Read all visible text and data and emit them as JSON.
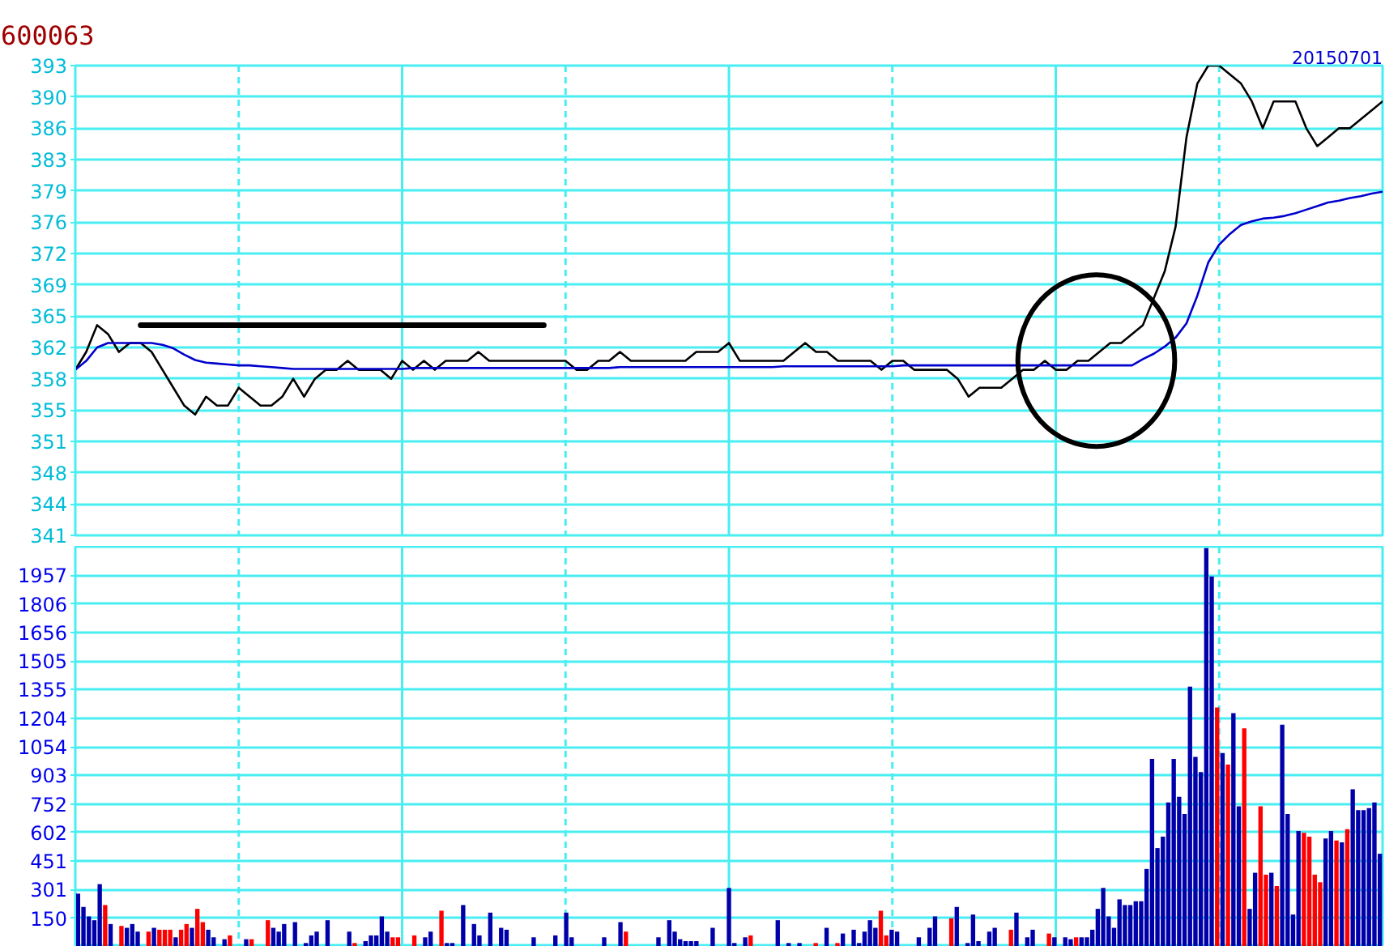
{
  "chart_data": [
    {
      "type": "line",
      "title": "600063",
      "annotations": [
        "20150701"
      ],
      "categories": [
        null,
        null,
        null,
        null,
        null,
        null,
        null,
        null,
        null,
        null,
        null,
        null,
        null,
        null,
        null,
        null,
        null,
        null,
        null,
        null,
        null,
        null,
        null,
        null,
        null,
        null,
        null,
        null,
        null,
        null,
        null,
        null,
        null,
        null,
        null,
        null,
        null,
        null,
        null,
        null,
        null,
        null,
        null,
        null,
        null,
        null,
        null,
        null,
        null,
        null,
        null,
        null,
        null,
        null,
        null,
        null,
        null,
        null,
        null,
        null,
        null,
        null,
        null,
        null,
        null,
        null,
        null,
        null,
        null,
        null,
        null,
        null,
        null,
        null,
        null,
        null,
        null,
        null,
        null,
        null,
        null,
        null,
        null,
        null,
        null,
        null,
        null,
        null,
        null,
        null,
        null,
        null,
        null,
        null,
        null,
        null,
        null,
        null,
        null,
        null,
        null,
        null,
        null,
        null,
        null,
        null,
        null,
        null,
        null,
        null,
        null,
        null,
        null,
        null,
        null,
        null,
        null,
        null,
        null,
        null,
        null
      ],
      "series": [
        {
          "color": "#000000",
          "values": [
            359,
            361,
            364,
            363,
            361,
            362,
            362,
            361,
            359,
            357,
            355,
            354,
            356,
            355,
            355,
            357,
            356,
            355,
            355,
            356,
            358,
            356,
            358,
            359,
            359,
            360,
            359,
            359,
            359,
            358,
            360,
            359,
            360,
            359,
            360,
            360,
            360,
            361,
            360,
            360,
            360,
            360,
            360,
            360,
            360,
            360,
            359,
            359,
            360,
            360,
            361,
            360,
            360,
            360,
            360,
            360,
            360,
            361,
            361,
            361,
            362,
            360,
            360,
            360,
            360,
            360,
            361,
            362,
            361,
            361,
            360,
            360,
            360,
            360,
            359,
            360,
            360,
            359,
            359,
            359,
            359,
            358,
            356,
            357,
            357,
            357,
            358,
            359,
            359,
            360,
            359,
            359,
            360,
            360,
            361,
            362,
            362,
            363,
            364,
            367,
            370,
            375,
            385,
            391,
            393,
            393,
            392,
            391,
            389,
            386,
            389,
            389,
            389,
            386,
            384,
            385,
            386,
            386,
            387,
            388,
            389
          ]
        },
        {
          "color": "#0000cc",
          "values": [
            359,
            360,
            361.5,
            362,
            362,
            362,
            362,
            362,
            361.8,
            361.4,
            360.7,
            360.1,
            359.8,
            359.7,
            359.6,
            359.5,
            359.5,
            359.4,
            359.3,
            359.2,
            359.1,
            359.1,
            359.1,
            359.1,
            359.1,
            359.1,
            359.1,
            359.1,
            359.1,
            359.1,
            359.1,
            359.2,
            359.2,
            359.2,
            359.2,
            359.2,
            359.2,
            359.2,
            359.2,
            359.2,
            359.2,
            359.2,
            359.2,
            359.2,
            359.2,
            359.2,
            359.2,
            359.2,
            359.2,
            359.2,
            359.3,
            359.3,
            359.3,
            359.3,
            359.3,
            359.3,
            359.3,
            359.3,
            359.3,
            359.3,
            359.3,
            359.3,
            359.3,
            359.3,
            359.3,
            359.4,
            359.4,
            359.4,
            359.4,
            359.4,
            359.4,
            359.4,
            359.4,
            359.4,
            359.4,
            359.4,
            359.5,
            359.5,
            359.5,
            359.5,
            359.5,
            359.5,
            359.5,
            359.5,
            359.5,
            359.5,
            359.5,
            359.5,
            359.5,
            359.5,
            359.5,
            359.5,
            359.5,
            359.5,
            359.5,
            359.5,
            359.5,
            359.5,
            360.2,
            360.8,
            361.6,
            362.6,
            364.2,
            367.3,
            371,
            373,
            374.2,
            375.2,
            375.6,
            375.9,
            376,
            376.2,
            376.5,
            376.9,
            377.3,
            377.7,
            377.9,
            378.2,
            378.4,
            378.7,
            378.9
          ]
        },
        {
          "color": "#000000",
          "values": [
            null,
            null,
            null,
            null,
            null,
            null,
            364,
            364,
            364,
            364,
            364,
            364,
            364,
            364,
            364,
            364,
            364,
            364,
            364,
            364,
            364,
            364,
            364,
            364,
            364,
            364,
            364,
            364,
            364,
            364,
            364,
            364,
            364,
            364,
            364,
            364,
            364,
            364,
            364,
            364,
            364,
            364,
            364,
            364,
            null,
            null,
            null,
            null,
            null,
            null,
            null,
            null,
            null,
            null,
            null,
            null,
            null,
            null,
            null,
            null,
            null,
            null,
            null,
            null,
            null,
            null,
            null,
            null,
            null,
            null,
            null,
            null,
            null,
            null,
            null,
            null,
            null,
            null,
            null,
            null,
            null,
            null,
            null,
            null,
            null,
            null,
            null,
            null,
            null,
            null,
            null,
            null,
            null,
            null,
            null,
            null,
            null,
            null,
            null,
            null,
            null,
            null,
            null,
            null,
            null,
            null,
            null,
            null,
            null,
            null,
            null,
            null,
            null,
            null,
            null,
            null,
            null,
            null,
            null,
            null,
            null
          ]
        }
      ],
      "ylim": [
        340.5,
        393
      ],
      "yticks": [
        {
          "value": 340.5,
          "label": "341"
        },
        344,
        {
          "value": 347.5,
          "label": "348"
        },
        351,
        {
          "value": 354.5,
          "label": "355"
        },
        358,
        {
          "value": 361.5,
          "label": "362"
        },
        365,
        {
          "value": 368.5,
          "label": "369"
        },
        372,
        {
          "value": 375.5,
          "label": "376"
        },
        379,
        {
          "value": 382.5,
          "label": "383"
        },
        386,
        {
          "value": 389.5,
          "label": "390"
        },
        393
      ],
      "grid": true,
      "tick_labels": "y"
    },
    {
      "type": "bar",
      "categories": [
        null,
        null,
        null,
        null,
        null,
        null,
        null,
        null,
        null,
        null,
        null,
        null,
        null,
        null,
        null,
        null,
        null,
        null,
        null,
        null,
        null,
        null,
        null,
        null,
        null,
        null,
        null,
        null,
        null,
        null,
        null,
        null,
        null,
        null,
        null,
        null,
        null,
        null,
        null,
        null,
        null,
        null,
        null,
        null,
        null,
        null,
        null,
        null,
        null,
        null,
        null,
        null,
        null,
        null,
        null,
        null,
        null,
        null,
        null,
        null,
        null,
        null,
        null,
        null,
        null,
        null,
        null,
        null,
        null,
        null,
        null,
        null,
        null,
        null,
        null,
        null,
        null,
        null,
        null,
        null,
        null,
        null,
        null,
        null,
        null,
        null,
        null,
        null,
        null,
        null,
        null,
        null,
        null,
        null,
        null,
        null,
        null,
        null,
        null,
        null,
        null,
        null,
        null,
        null,
        null,
        null,
        null,
        null,
        null,
        null,
        null,
        null,
        null,
        null,
        null,
        null,
        null,
        null,
        null,
        null,
        null,
        null,
        null,
        null,
        null,
        null,
        null,
        null,
        null,
        null,
        null,
        null,
        null,
        null,
        null,
        null,
        null,
        null,
        null,
        null,
        null,
        null,
        null,
        null,
        null,
        null,
        null,
        null,
        null,
        null,
        null,
        null,
        null,
        null,
        null,
        null,
        null,
        null,
        null,
        null,
        null,
        null,
        null,
        null,
        null,
        null,
        null,
        null,
        null,
        null,
        null,
        null,
        null,
        null,
        null,
        null,
        null,
        null,
        null,
        null,
        null,
        null,
        null,
        null,
        null,
        null,
        null,
        null,
        null,
        null,
        null,
        null,
        null,
        null,
        null,
        null,
        null,
        null,
        null,
        null,
        null,
        null,
        null,
        null,
        null,
        null,
        null,
        null,
        null,
        null,
        null,
        null,
        null,
        null,
        null,
        null,
        null,
        null,
        null,
        null,
        null,
        null,
        null,
        null,
        null,
        null,
        null,
        null,
        null,
        null,
        null,
        null,
        null,
        null,
        null,
        null,
        null,
        null,
        null,
        null,
        null
      ],
      "values": [
        280,
        210,
        160,
        140,
        330,
        220,
        120,
        null,
        110,
        100,
        120,
        80,
        null,
        80,
        100,
        90,
        90,
        90,
        50,
        90,
        120,
        100,
        200,
        130,
        90,
        50,
        null,
        40,
        60,
        null,
        null,
        40,
        40,
        null,
        null,
        140,
        100,
        80,
        120,
        null,
        130,
        null,
        20,
        60,
        80,
        null,
        140,
        null,
        null,
        null,
        80,
        20,
        null,
        30,
        60,
        60,
        160,
        80,
        50,
        50,
        null,
        null,
        60,
        null,
        50,
        80,
        null,
        190,
        20,
        20,
        null,
        220,
        null,
        120,
        60,
        null,
        180,
        null,
        100,
        90,
        null,
        null,
        null,
        null,
        50,
        null,
        null,
        null,
        60,
        null,
        180,
        50,
        null,
        null,
        null,
        null,
        null,
        50,
        null,
        null,
        130,
        80,
        null,
        null,
        null,
        null,
        null,
        50,
        null,
        140,
        80,
        40,
        30,
        30,
        30,
        null,
        null,
        100,
        null,
        null,
        310,
        20,
        null,
        50,
        60,
        null,
        null,
        null,
        null,
        140,
        null,
        20,
        null,
        20,
        null,
        null,
        20,
        null,
        100,
        null,
        20,
        70,
        null,
        90,
        20,
        80,
        140,
        100,
        190,
        60,
        90,
        80,
        null,
        null,
        null,
        50,
        null,
        100,
        160,
        null,
        null,
        150,
        210,
        null,
        20,
        170,
        30,
        null,
        80,
        100,
        null,
        null,
        90,
        180,
        null,
        50,
        90,
        null,
        null,
        70,
        50,
        null,
        50,
        40,
        50,
        50,
        50,
        90,
        200,
        310,
        160,
        100,
        250,
        220,
        220,
        240,
        240,
        410,
        990,
        520,
        580,
        760,
        990,
        790,
        700,
        1370,
        1000,
        920,
        2100,
        1950,
        1260,
        1020,
        960,
        1230,
        740,
        1150,
        200,
        390,
        740,
        380,
        390,
        320,
        1170,
        700,
        170,
        610,
        600,
        580,
        380,
        340,
        570,
        610,
        560,
        550,
        620,
        830,
        720,
        720,
        730,
        760,
        490
      ],
      "colors": [
        "#0000aa",
        "#0000aa",
        "#0000aa",
        "#0000aa",
        "#0000aa",
        "#ff0000",
        "#0000aa",
        "#0000aa",
        "#ff0000",
        "#0000aa",
        "#0000aa",
        "#0000aa",
        "#0000aa",
        "#ff0000",
        "#0000aa",
        "#ff0000",
        "#ff0000",
        "#ff0000",
        "#0000aa",
        "#ff0000",
        "#ff0000",
        "#0000aa",
        "#ff0000",
        "#ff0000",
        "#0000aa",
        "#0000aa",
        "#0000aa",
        "#0000aa",
        "#ff0000",
        "#0000aa",
        "#0000aa",
        "#0000aa",
        "#ff0000",
        "#0000aa",
        "#0000aa",
        "#ff0000",
        "#0000aa",
        "#0000aa",
        "#0000aa",
        "#0000aa",
        "#0000aa",
        "#0000aa",
        "#0000aa",
        "#0000aa",
        "#0000aa",
        "#0000aa",
        "#0000aa",
        "#0000aa",
        "#0000aa",
        "#0000aa",
        "#0000aa",
        "#ff0000",
        "#0000aa",
        "#0000aa",
        "#0000aa",
        "#0000aa",
        "#0000aa",
        "#0000aa",
        "#ff0000",
        "#ff0000",
        "#0000aa",
        "#0000aa",
        "#ff0000",
        "#0000aa",
        "#0000aa",
        "#0000aa",
        "#0000aa",
        "#ff0000",
        "#0000aa",
        "#0000aa",
        "#0000aa",
        "#0000aa",
        "#0000aa",
        "#0000aa",
        "#0000aa",
        "#0000aa",
        "#0000aa",
        "#0000aa",
        "#0000aa",
        "#0000aa",
        "#0000aa",
        "#0000aa",
        "#0000aa",
        "#0000aa",
        "#0000aa",
        "#0000aa",
        "#0000aa",
        "#0000aa",
        "#0000aa",
        "#0000aa",
        "#0000aa",
        "#0000aa",
        "#0000aa",
        "#0000aa",
        "#0000aa",
        "#0000aa",
        "#0000aa",
        "#0000aa",
        "#0000aa",
        "#0000aa",
        "#0000aa",
        "#ff0000",
        "#0000aa",
        "#0000aa",
        "#0000aa",
        "#0000aa",
        "#0000aa",
        "#0000aa",
        "#0000aa",
        "#0000aa",
        "#0000aa",
        "#0000aa",
        "#0000aa",
        "#0000aa",
        "#0000aa",
        "#0000aa",
        "#0000aa",
        "#0000aa",
        "#0000aa",
        "#0000aa",
        "#0000aa",
        "#0000aa",
        "#0000aa",
        "#0000aa",
        "#ff0000",
        "#0000aa",
        "#0000aa",
        "#0000aa",
        "#0000aa",
        "#0000aa",
        "#0000aa",
        "#0000aa",
        "#0000aa",
        "#0000aa",
        "#0000aa",
        "#0000aa",
        "#ff0000",
        "#0000aa",
        "#0000aa",
        "#0000aa",
        "#ff0000",
        "#0000aa",
        "#0000aa",
        "#0000aa",
        "#0000aa",
        "#0000aa",
        "#0000aa",
        "#0000aa",
        "#ff0000",
        "#ff0000",
        "#0000aa",
        "#0000aa",
        "#0000aa",
        "#0000aa",
        "#0000aa",
        "#0000aa",
        "#0000aa",
        "#0000aa",
        "#0000aa",
        "#0000aa",
        "#0000aa",
        "#ff0000",
        "#0000aa",
        "#0000aa",
        "#0000aa",
        "#0000aa",
        "#0000aa",
        "#0000aa",
        "#0000aa",
        "#0000aa",
        "#0000aa",
        "#0000aa",
        "#ff0000",
        "#0000aa",
        "#0000aa",
        "#0000aa",
        "#0000aa",
        "#0000aa",
        "#0000aa",
        "#ff0000",
        "#0000aa",
        "#0000aa",
        "#0000aa",
        "#0000aa",
        "#ff0000",
        "#0000aa",
        "#0000aa",
        "#0000aa",
        "#0000aa",
        "#0000aa",
        "#0000aa",
        "#0000aa",
        "#0000aa",
        "#0000aa",
        "#0000aa",
        "#0000aa",
        "#0000aa",
        "#0000aa",
        "#0000aa",
        "#0000aa",
        "#0000aa",
        "#0000aa",
        "#0000aa",
        "#0000aa",
        "#0000aa",
        "#0000aa",
        "#0000aa",
        "#0000aa",
        "#0000aa",
        "#0000aa",
        "#ff0000",
        "#0000aa",
        "#ff0000",
        "#0000aa",
        "#0000aa",
        "#ff0000",
        "#0000aa",
        "#0000aa",
        "#ff0000",
        "#ff0000",
        "#0000aa",
        "#ff0000",
        "#0000aa",
        "#0000aa",
        "#0000aa",
        "#0000aa",
        "#ff0000",
        "#ff0000",
        "#ff0000",
        "#ff0000",
        "#0000aa",
        "#0000aa",
        "#ff0000",
        "#0000aa",
        "#ff0000",
        "#0000aa",
        "#0000aa",
        "#0000aa",
        "#0000aa",
        "#0000aa",
        "#0000aa"
      ],
      "ylim": [
        0,
        2107
      ],
      "yticks": [
        {
          "value": 150.5,
          "label": "150"
        },
        301,
        {
          "value": 451.5,
          "label": "451"
        },
        602,
        {
          "value": 752.5,
          "label": "752"
        },
        903,
        {
          "value": 1053.5,
          "label": "1054"
        },
        1204,
        {
          "value": 1354.5,
          "label": "1355"
        },
        1505,
        {
          "value": 1655.5,
          "label": "1656"
        },
        1806,
        {
          "value": 1956.5,
          "label": "1957"
        }
      ],
      "grid": true,
      "tick_labels": "y"
    }
  ]
}
